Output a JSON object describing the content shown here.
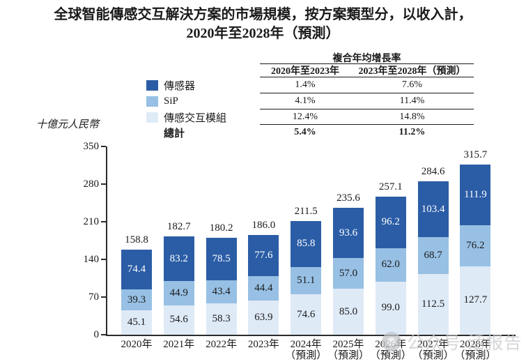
{
  "title": {
    "line1": "全球智能傳感交互解決方案的市場規模，按方案類型分，以收入計，",
    "line2": "2020年至2028年（預測）"
  },
  "unit_label": "十億元人民幣",
  "cagr_table": {
    "header": "複合年均增長率",
    "col_headers": [
      "2020年至2023年",
      "2023年至2028年（預測）"
    ],
    "rows": [
      {
        "label": "傳感器",
        "swatch_color": "#2b5da6",
        "v1": "1.4%",
        "v2": "7.6%"
      },
      {
        "label": "SiP",
        "swatch_color": "#97c0e4",
        "v1": "4.1%",
        "v2": "11.4%"
      },
      {
        "label": "傳感交互模組",
        "swatch_color": "#dfeaf7",
        "v1": "12.4%",
        "v2": "14.8%"
      },
      {
        "label": "總計",
        "v1": "5.4%",
        "v2": "11.2%"
      }
    ]
  },
  "chart_data": {
    "type": "bar",
    "stacked": true,
    "title": "全球智能傳感交互解決方案的市場規模，按方案類型分，以收入計，2020年至2028年（預測）",
    "ylabel": "十億元人民幣",
    "ylim": [
      0,
      350
    ],
    "yticks": [
      0,
      70,
      140,
      210,
      280,
      350
    ],
    "grid": false,
    "legend_position": "upper-left",
    "categories": [
      "2020年",
      "2021年",
      "2022年",
      "2023年",
      "2024年（預測）",
      "2025年（預測）",
      "2026年（預測）",
      "2027年（預測）",
      "2028年（預測）"
    ],
    "x_labels": [
      {
        "t": "2020年"
      },
      {
        "t": "2021年"
      },
      {
        "t": "2022年"
      },
      {
        "t": "2023年"
      },
      {
        "t": "2024年",
        "n": "（預測）"
      },
      {
        "t": "2025年",
        "n": "（預測）"
      },
      {
        "t": "2026年",
        "n": "（預測）"
      },
      {
        "t": "2027年",
        "n": "（預測）"
      },
      {
        "t": "2028年",
        "n": "（預測）"
      }
    ],
    "series": [
      {
        "name": "傳感器",
        "color": "#2b5da6",
        "text_color": "#ffffff",
        "values": [
          "74.4",
          "83.2",
          "78.5",
          "77.6",
          "85.8",
          "93.6",
          "96.2",
          "103.4",
          "111.9"
        ]
      },
      {
        "name": "SiP",
        "color": "#97c0e4",
        "text_color": "#1a1a1a",
        "values": [
          "39.3",
          "44.9",
          "43.4",
          "44.4",
          "51.1",
          "57.0",
          "62.0",
          "68.7",
          "76.2"
        ]
      },
      {
        "name": "傳感交互模組",
        "color": "#dfeaf7",
        "text_color": "#1a1a1a",
        "values": [
          "45.1",
          "54.6",
          "58.3",
          "63.9",
          "74.6",
          "85.0",
          "99.0",
          "112.5",
          "127.7"
        ]
      }
    ],
    "totals": [
      "158.8",
      "182.7",
      "180.2",
      "186.0",
      "211.5",
      "235.6",
      "257.1",
      "284.6",
      "315.7"
    ],
    "totals_label": "總計"
  },
  "watermark": {
    "text": "公众号·活报告"
  }
}
